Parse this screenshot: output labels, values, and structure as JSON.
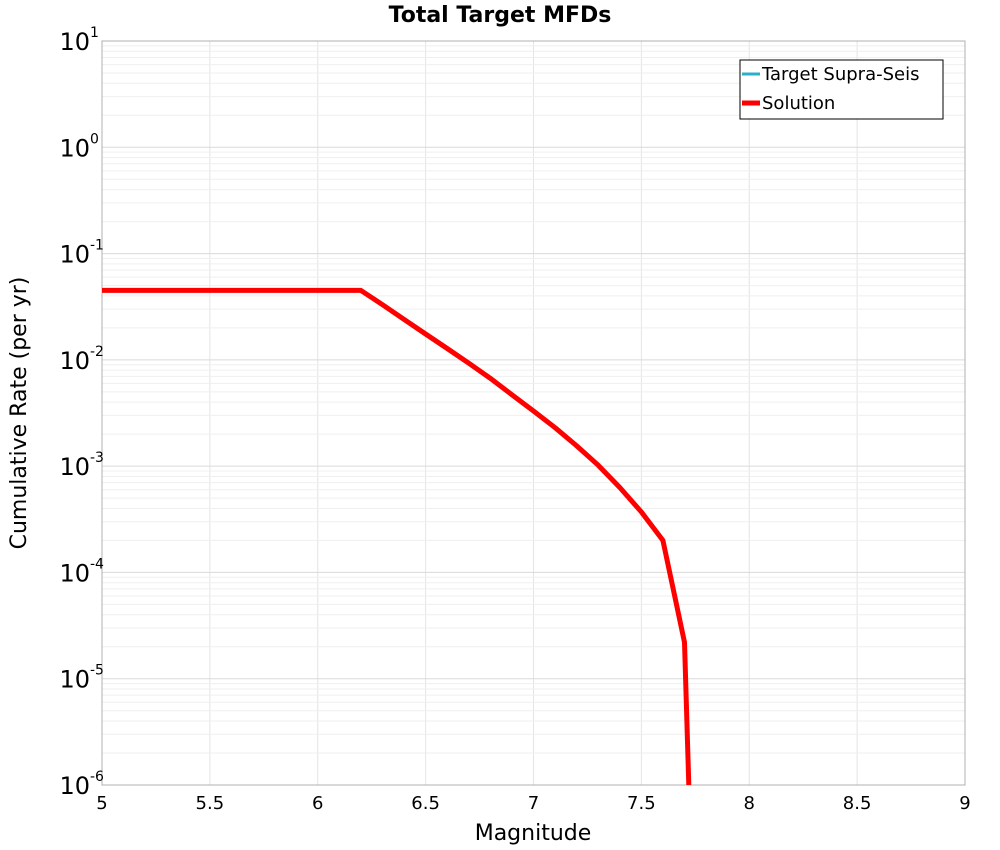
{
  "chart_data": {
    "type": "line",
    "title": "Total Target MFDs",
    "xlabel": "Magnitude",
    "ylabel": "Cumulative Rate (per yr)",
    "xlim": [
      5,
      9
    ],
    "ylim": [
      1e-06,
      10
    ],
    "yscale": "log",
    "grid": true,
    "legend_position": "top-right",
    "xticks": [
      "5",
      "5.5",
      "6",
      "6.5",
      "7",
      "7.5",
      "8",
      "8.5",
      "9"
    ],
    "yticks": [
      {
        "base": "10",
        "exp": "1"
      },
      {
        "base": "10",
        "exp": "0"
      },
      {
        "base": "10",
        "exp": "-1"
      },
      {
        "base": "10",
        "exp": "-2"
      },
      {
        "base": "10",
        "exp": "-3"
      },
      {
        "base": "10",
        "exp": "-4"
      },
      {
        "base": "10",
        "exp": "-5"
      },
      {
        "base": "10",
        "exp": "-6"
      }
    ],
    "series": [
      {
        "name": "Target Supra-Seis",
        "color": "#2ab0c6",
        "points": []
      },
      {
        "name": "Solution",
        "color": "#ff0000",
        "points": [
          [
            5.0,
            0.045
          ],
          [
            6.2,
            0.045
          ],
          [
            6.3,
            0.033
          ],
          [
            6.4,
            0.024
          ],
          [
            6.5,
            0.0175
          ],
          [
            6.6,
            0.0128
          ],
          [
            6.7,
            0.0093
          ],
          [
            6.8,
            0.0067
          ],
          [
            6.9,
            0.0047
          ],
          [
            7.0,
            0.0033
          ],
          [
            7.1,
            0.0023
          ],
          [
            7.2,
            0.00155
          ],
          [
            7.3,
            0.00102
          ],
          [
            7.4,
            0.00063
          ],
          [
            7.5,
            0.00037
          ],
          [
            7.6,
            0.0002
          ],
          [
            7.7,
            2.2e-05
          ],
          [
            7.72,
            1e-06
          ]
        ]
      }
    ]
  }
}
